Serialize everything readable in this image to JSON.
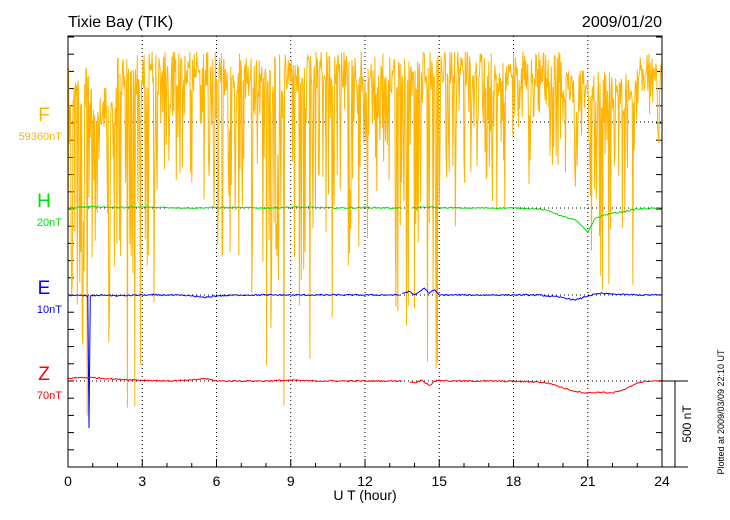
{
  "chart_data": {
    "type": "line",
    "title": "Tixie Bay (TIK)",
    "date": "2009/01/20",
    "xlabel": "U T (hour)",
    "xlim": [
      0,
      24
    ],
    "xticks": [
      "0",
      "3",
      "6",
      "9",
      "12",
      "15",
      "18",
      "21",
      "24"
    ],
    "scale_bar": "500 nT",
    "plotted_note": "Plotted at 2009/03/09 22:10 UT",
    "grid": "dotted at 3-hour intervals and component baselines",
    "colors": {
      "F": "#ffb400",
      "H": "#00e000",
      "E": "#0000ff",
      "Z": "#ff0000"
    },
    "series": [
      {
        "name": "F",
        "baseline_label": "59360nT",
        "note": "per-hour min/max offset from baseline in nT (highly disturbed)",
        "hourly_max": [
          320,
          200,
          400,
          420,
          420,
          420,
          400,
          400,
          400,
          400,
          420,
          420,
          400,
          400,
          420,
          420,
          420,
          400,
          420,
          420,
          300,
          300,
          300,
          400
        ],
        "hourly_min": [
          -1800,
          -1900,
          -1950,
          -1600,
          -500,
          -800,
          -900,
          -1100,
          -1800,
          -1400,
          -1300,
          -1100,
          -900,
          -1500,
          -1500,
          -700,
          -500,
          -600,
          -400,
          -300,
          -500,
          -1100,
          -1200,
          -400
        ]
      },
      {
        "name": "H",
        "baseline_label": "20nT",
        "points": [
          [
            0,
            0
          ],
          [
            0.5,
            5
          ],
          [
            1,
            8
          ],
          [
            1.5,
            5
          ],
          [
            2,
            3
          ],
          [
            3,
            5
          ],
          [
            4,
            3
          ],
          [
            5,
            0
          ],
          [
            6,
            3
          ],
          [
            7,
            2
          ],
          [
            8,
            0
          ],
          [
            9,
            5
          ],
          [
            10,
            3
          ],
          [
            11,
            0
          ],
          [
            12,
            3
          ],
          [
            13,
            0
          ],
          [
            13.5,
            0
          ],
          [
            null,
            null
          ],
          [
            13.9,
            0
          ],
          [
            14.5,
            5
          ],
          [
            15,
            2
          ],
          [
            16,
            0
          ],
          [
            17,
            0
          ],
          [
            18,
            0
          ],
          [
            19,
            -5
          ],
          [
            19.5,
            -20
          ],
          [
            20,
            -50
          ],
          [
            20.5,
            -70
          ],
          [
            21,
            -140
          ],
          [
            21.3,
            -60
          ],
          [
            21.7,
            -40
          ],
          [
            22,
            -30
          ],
          [
            22.5,
            -20
          ],
          [
            23,
            -5
          ],
          [
            24,
            0
          ]
        ]
      },
      {
        "name": "E",
        "baseline_label": "10nT",
        "points": [
          [
            0,
            0
          ],
          [
            0.8,
            -5
          ],
          [
            0.85,
            -773
          ],
          [
            0.9,
            -5
          ],
          [
            1.5,
            0
          ],
          [
            2,
            -5
          ],
          [
            3,
            0
          ],
          [
            4,
            0
          ],
          [
            5,
            -5
          ],
          [
            5.5,
            -15
          ],
          [
            6,
            -5
          ],
          [
            7,
            0
          ],
          [
            8,
            0
          ],
          [
            9,
            0
          ],
          [
            10,
            0
          ],
          [
            11,
            0
          ],
          [
            12,
            0
          ],
          [
            13,
            0
          ],
          [
            13.4,
            0
          ],
          [
            null,
            null
          ],
          [
            13.5,
            10
          ],
          [
            13.8,
            20
          ],
          [
            14,
            0
          ],
          [
            14.2,
            20
          ],
          [
            14.4,
            40
          ],
          [
            14.6,
            10
          ],
          [
            14.8,
            30
          ],
          [
            15,
            0
          ],
          [
            16,
            0
          ],
          [
            17,
            0
          ],
          [
            18,
            0
          ],
          [
            19,
            0
          ],
          [
            20,
            -15
          ],
          [
            20.5,
            -30
          ],
          [
            21,
            -5
          ],
          [
            21.5,
            10
          ],
          [
            22,
            5
          ],
          [
            23,
            0
          ],
          [
            24,
            0
          ]
        ]
      },
      {
        "name": "Z",
        "baseline_label": "70nT",
        "points": [
          [
            0,
            15
          ],
          [
            0.5,
            20
          ],
          [
            1,
            20
          ],
          [
            2,
            10
          ],
          [
            3,
            5
          ],
          [
            4,
            0
          ],
          [
            5,
            5
          ],
          [
            5.5,
            15
          ],
          [
            6,
            0
          ],
          [
            8,
            0
          ],
          [
            9,
            5
          ],
          [
            10,
            0
          ],
          [
            11,
            0
          ],
          [
            12,
            0
          ],
          [
            13,
            0
          ],
          [
            13.5,
            0
          ],
          [
            null,
            null
          ],
          [
            13.8,
            -5
          ],
          [
            14,
            -10
          ],
          [
            14.3,
            5
          ],
          [
            14.6,
            -25
          ],
          [
            14.9,
            5
          ],
          [
            15.5,
            0
          ],
          [
            17,
            0
          ],
          [
            19,
            -5
          ],
          [
            19.5,
            -15
          ],
          [
            20,
            -40
          ],
          [
            20.5,
            -60
          ],
          [
            21,
            -70
          ],
          [
            21.5,
            -65
          ],
          [
            22,
            -70
          ],
          [
            22.5,
            -50
          ],
          [
            23,
            -10
          ],
          [
            23.5,
            0
          ],
          [
            24,
            0
          ]
        ]
      }
    ]
  }
}
